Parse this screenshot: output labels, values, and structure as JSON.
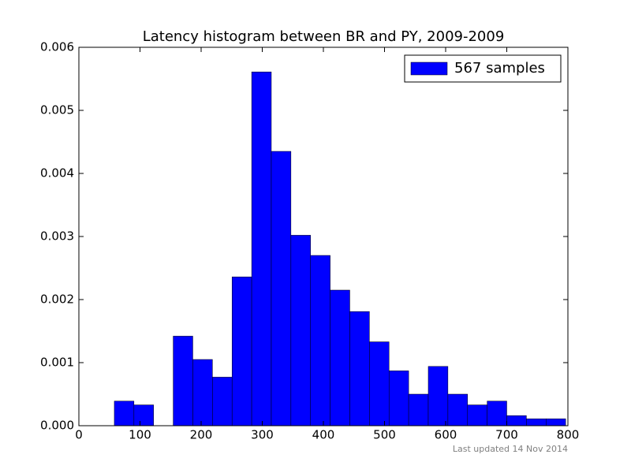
{
  "chart_data": {
    "type": "histogram",
    "title": "Latency histogram between BR and PY, 2009-2009",
    "bins": [
      58,
      90.1,
      122.2,
      154.3,
      186.4,
      218.5,
      250.6,
      282.7,
      314.8,
      346.9,
      379.0,
      411.1,
      443.2,
      475.3,
      507.4,
      539.5,
      571.6,
      603.7,
      635.8,
      667.9,
      700.0,
      732.1,
      764.2,
      796.3
    ],
    "series": [
      {
        "name": "567 samples",
        "color": "#0000ff",
        "values": [
          0.00039,
          0.00033,
          0,
          0.00142,
          0.00105,
          0.00077,
          0.00236,
          0.00561,
          0.00435,
          0.00302,
          0.0027,
          0.00215,
          0.00181,
          0.00133,
          0.00087,
          0.0005,
          0.00094,
          0.0005,
          0.00033,
          0.00039,
          0.00016,
          0.00011,
          0.00011
        ]
      }
    ],
    "xlim": [
      0,
      800
    ],
    "xticks": [
      0,
      100,
      200,
      300,
      400,
      500,
      600,
      700,
      800
    ],
    "ylim": [
      0,
      0.006
    ],
    "yticks": [
      {
        "value": 0,
        "label": "0.000"
      },
      {
        "value": 0.001,
        "label": "0.001"
      },
      {
        "value": 0.002,
        "label": "0.002"
      },
      {
        "value": 0.003,
        "label": "0.003"
      },
      {
        "value": 0.004,
        "label": "0.004"
      },
      {
        "value": 0.005,
        "label": "0.005"
      },
      {
        "value": 0.006,
        "label": "0.006"
      }
    ],
    "legend": "upper right",
    "footer": "Last updated 14 Nov 2014"
  }
}
